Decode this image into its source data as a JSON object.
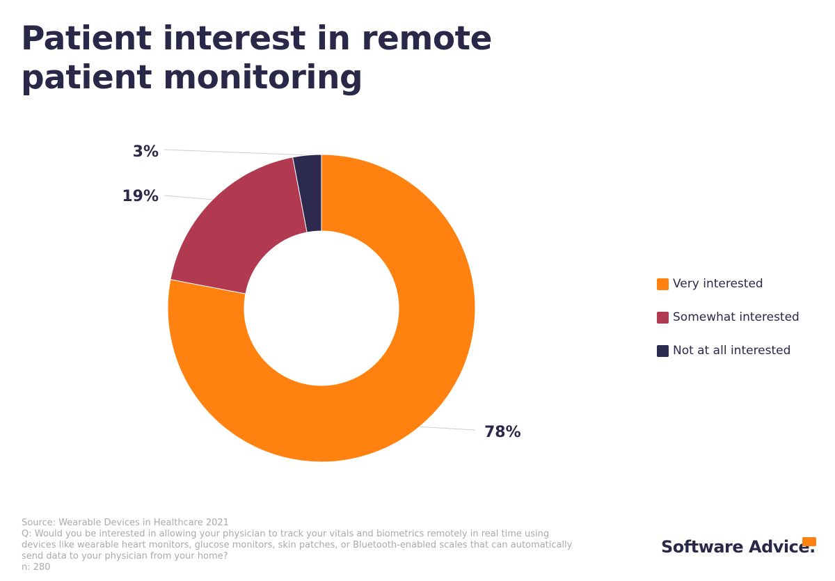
{
  "chart_data": {
    "type": "pie",
    "title": "Patient interest in remote patient monitoring",
    "donut": true,
    "legend_position": "right",
    "slices": [
      {
        "label": "Very interested",
        "value": 78,
        "display": "78%",
        "color": "#ff8210"
      },
      {
        "label": "Somewhat interested",
        "value": 19,
        "display": "19%",
        "color": "#b13a51"
      },
      {
        "label": "Not at all interested",
        "value": 3,
        "display": "3%",
        "color": "#2c2a4e"
      }
    ]
  },
  "footer": {
    "source": "Source: Wearable Devices in Healthcare 2021",
    "question": "Q: Would you be interested in allowing your physician to track your vitals and biometrics remotely in real time using devices like wearable heart monitors, glucose monitors, skin patches, or Bluetooth-enabled scales that can automatically send data to your physician from your home?",
    "n": "n: 280"
  },
  "logo": "Software Advice."
}
